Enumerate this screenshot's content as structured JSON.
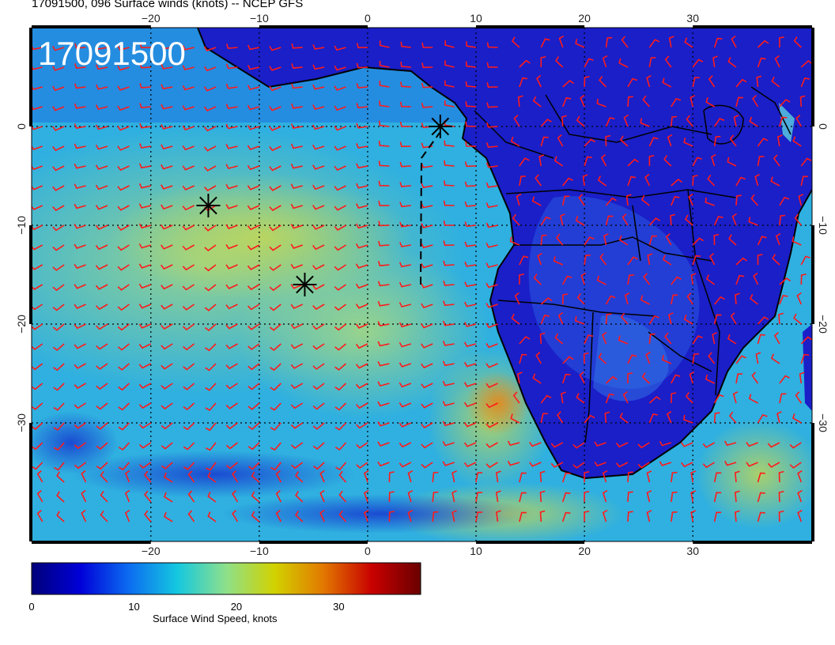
{
  "title": "17091500, 096 Surface winds (knots) -- NCEP GFS",
  "stamp": "17091500",
  "map": {
    "lon_range": [
      -31,
      41
    ],
    "lat_range": [
      -42,
      10
    ],
    "lon_ticks": [
      -20,
      -10,
      0,
      10,
      20,
      30
    ],
    "lat_ticks": [
      0,
      -10,
      -20,
      -30
    ],
    "lon_tick_labels": [
      "−20",
      "−10",
      "0",
      "10",
      "20",
      "30"
    ],
    "lat_tick_labels": [
      "0",
      "−10",
      "−20",
      "−30"
    ],
    "grid": true,
    "barb_color": "#ff1a1a",
    "markers": [
      {
        "name": "storm-marker-1",
        "lon": -14.7,
        "lat": -8.0
      },
      {
        "name": "storm-marker-2",
        "lon": -5.8,
        "lat": -16.0
      },
      {
        "name": "storm-marker-3",
        "lon": 6.7,
        "lat": 0.0
      }
    ]
  },
  "colorbar": {
    "caption": "Surface Wind Speed, knots",
    "min": 0,
    "max": 38,
    "ticks": [
      0,
      10,
      20,
      30
    ],
    "tick_labels": [
      "0",
      "10",
      "20",
      "30"
    ],
    "colors": [
      "#00007a",
      "#0000d8",
      "#0c6cf0",
      "#15c8e0",
      "#8ee08a",
      "#d2d200",
      "#e27800",
      "#c80000",
      "#6a0000"
    ]
  }
}
